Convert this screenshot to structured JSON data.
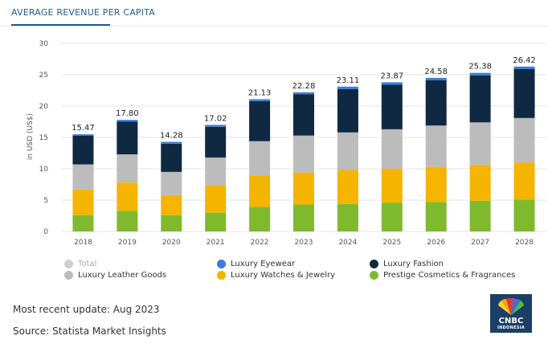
{
  "header": {
    "title": "AVERAGE REVENUE PER CAPITA"
  },
  "chart_data": {
    "type": "bar",
    "stacked": true,
    "title": "AVERAGE REVENUE PER CAPITA",
    "ylabel": "in USD (US$)",
    "xlabel": "",
    "ylim": [
      0,
      30
    ],
    "yticks": [
      "0",
      "5",
      "10",
      "15",
      "20",
      "25",
      "30"
    ],
    "categories": [
      "2018",
      "2019",
      "2020",
      "2021",
      "2022",
      "2023",
      "2024",
      "2025",
      "2026",
      "2027",
      "2028"
    ],
    "total_labels": [
      "15.47",
      "17.80",
      "14.28",
      "17.02",
      "21.13",
      "22.28",
      "23.11",
      "23.87",
      "24.58",
      "25.38",
      "26.42"
    ],
    "series": [
      {
        "name": "Prestige Cosmetics & Fragrances",
        "color": "#7fba2e",
        "values": [
          2.6,
          3.3,
          2.6,
          3.0,
          3.9,
          4.3,
          4.4,
          4.6,
          4.7,
          4.9,
          5.1
        ]
      },
      {
        "name": "Luxury Watches & Jewelry",
        "color": "#f5b400",
        "values": [
          4.1,
          4.5,
          3.2,
          4.4,
          5.0,
          5.1,
          5.4,
          5.4,
          5.6,
          5.7,
          5.9
        ]
      },
      {
        "name": "Luxury Leather Goods",
        "color": "#bcbcbc",
        "values": [
          4.0,
          4.5,
          3.7,
          4.4,
          5.5,
          5.9,
          6.0,
          6.3,
          6.6,
          6.8,
          7.1
        ]
      },
      {
        "name": "Luxury Fashion",
        "color": "#0f2942",
        "values": [
          4.6,
          5.2,
          4.5,
          4.9,
          6.4,
          6.6,
          6.9,
          7.1,
          7.2,
          7.5,
          7.8
        ]
      },
      {
        "name": "Luxury Eyewear",
        "color": "#3b7dd8",
        "values": [
          0.2,
          0.3,
          0.3,
          0.3,
          0.3,
          0.3,
          0.4,
          0.4,
          0.4,
          0.4,
          0.4
        ]
      }
    ],
    "legend": [
      {
        "label": "Total",
        "color": "#d0d0d0"
      },
      {
        "label": "Luxury Eyewear",
        "color": "#3b7dd8"
      },
      {
        "label": "Luxury Fashion",
        "color": "#0f2942"
      },
      {
        "label": "Luxury Leather Goods",
        "color": "#bcbcbc"
      },
      {
        "label": "Luxury Watches & Jewelry",
        "color": "#f5b400"
      },
      {
        "label": "Prestige Cosmetics & Fragrances",
        "color": "#7fba2e"
      }
    ]
  },
  "footer": {
    "update": "Most recent update: Aug 2023",
    "source": "Source: Statista Market Insights"
  },
  "logo": {
    "brand": "CNBC",
    "sub": "INDONESIA"
  }
}
